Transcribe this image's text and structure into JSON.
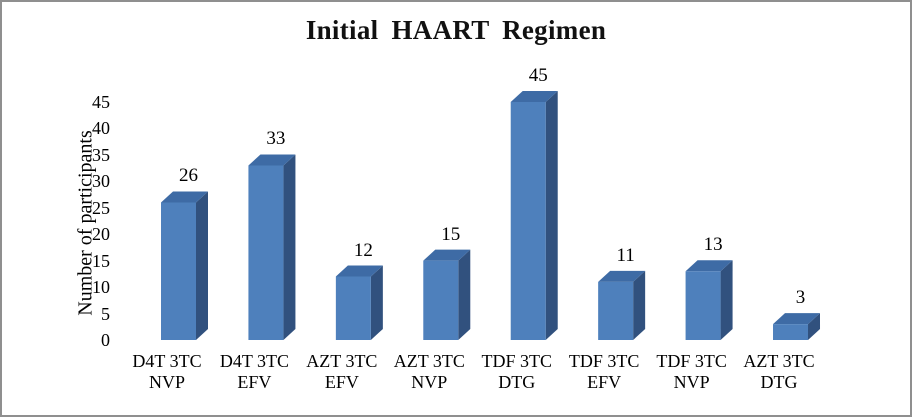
{
  "chart_data": {
    "type": "bar",
    "style": "3d-column",
    "title": "Initial HAART Regimen",
    "xlabel": "",
    "ylabel": "Number of participants",
    "categories": [
      "D4T 3TC NVP",
      "D4T 3TC EFV",
      "AZT 3TC EFV",
      "AZT 3TC NVP",
      "TDF 3TC DTG",
      "TDF 3TC EFV",
      "TDF 3TC NVP",
      "AZT 3TC DTG"
    ],
    "values": [
      26,
      33,
      12,
      15,
      45,
      11,
      13,
      3
    ],
    "data_labels_shown": true,
    "yticks": [
      0,
      5,
      10,
      15,
      20,
      25,
      30,
      35,
      40,
      45
    ],
    "ylim": [
      0,
      45
    ],
    "grid": false,
    "legend": "none",
    "colors": {
      "bar_front": "#4e80bc",
      "bar_top": "#3e6ba5",
      "bar_side": "#31517e",
      "text": "#000000",
      "frame_border": "#8f8f8f",
      "background": "#ffffff"
    }
  }
}
